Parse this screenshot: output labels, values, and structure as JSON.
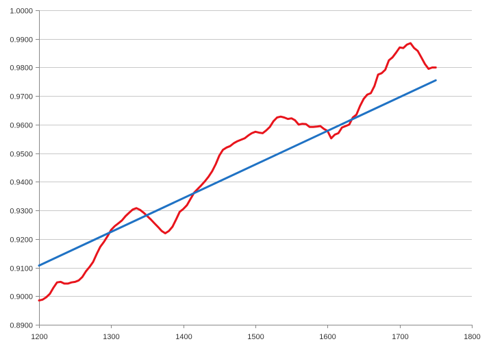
{
  "chart_data": {
    "type": "line",
    "title": "",
    "xlabel": "",
    "ylabel": "",
    "xlim": [
      1200,
      1800
    ],
    "ylim": [
      0.89,
      1.0
    ],
    "x_ticks": [
      1200,
      1300,
      1400,
      1500,
      1600,
      1700,
      1800
    ],
    "y_ticks": [
      0.89,
      0.9,
      0.91,
      0.92,
      0.93,
      0.94,
      0.95,
      0.96,
      0.97,
      0.98,
      0.99,
      1.0
    ],
    "x_tick_labels": [
      "1200",
      "1300",
      "1400",
      "1500",
      "1600",
      "1700",
      "1800"
    ],
    "y_tick_labels": [
      "0.8900",
      "0.9000",
      "0.9100",
      "0.9200",
      "0.9300",
      "0.9400",
      "0.9500",
      "0.9600",
      "0.9700",
      "0.9800",
      "0.9900",
      "1.0000"
    ],
    "grid": true,
    "legend": "none",
    "series": [
      {
        "color": "#e8141c",
        "points": [
          [
            1200,
            0.8985
          ],
          [
            1205,
            0.8988
          ],
          [
            1210,
            0.8996
          ],
          [
            1215,
            0.9008
          ],
          [
            1220,
            0.903
          ],
          [
            1225,
            0.9048
          ],
          [
            1230,
            0.905
          ],
          [
            1235,
            0.9044
          ],
          [
            1240,
            0.9044
          ],
          [
            1245,
            0.9048
          ],
          [
            1250,
            0.905
          ],
          [
            1255,
            0.9055
          ],
          [
            1260,
            0.9067
          ],
          [
            1265,
            0.9087
          ],
          [
            1270,
            0.9102
          ],
          [
            1275,
            0.912
          ],
          [
            1280,
            0.9148
          ],
          [
            1285,
            0.9173
          ],
          [
            1290,
            0.919
          ],
          [
            1295,
            0.921
          ],
          [
            1300,
            0.9232
          ],
          [
            1305,
            0.9245
          ],
          [
            1310,
            0.9255
          ],
          [
            1315,
            0.9265
          ],
          [
            1320,
            0.928
          ],
          [
            1325,
            0.9292
          ],
          [
            1330,
            0.9303
          ],
          [
            1335,
            0.9308
          ],
          [
            1340,
            0.9302
          ],
          [
            1345,
            0.9292
          ],
          [
            1350,
            0.928
          ],
          [
            1355,
            0.9268
          ],
          [
            1360,
            0.9255
          ],
          [
            1365,
            0.9242
          ],
          [
            1370,
            0.9228
          ],
          [
            1375,
            0.922
          ],
          [
            1380,
            0.9228
          ],
          [
            1385,
            0.9243
          ],
          [
            1390,
            0.9268
          ],
          [
            1395,
            0.9295
          ],
          [
            1400,
            0.9305
          ],
          [
            1405,
            0.9318
          ],
          [
            1410,
            0.934
          ],
          [
            1415,
            0.9362
          ],
          [
            1420,
            0.9375
          ],
          [
            1425,
            0.9388
          ],
          [
            1430,
            0.9402
          ],
          [
            1435,
            0.9418
          ],
          [
            1440,
            0.9437
          ],
          [
            1445,
            0.9462
          ],
          [
            1450,
            0.9492
          ],
          [
            1455,
            0.9512
          ],
          [
            1460,
            0.952
          ],
          [
            1465,
            0.9525
          ],
          [
            1470,
            0.9535
          ],
          [
            1475,
            0.9542
          ],
          [
            1480,
            0.9547
          ],
          [
            1485,
            0.9552
          ],
          [
            1490,
            0.9562
          ],
          [
            1495,
            0.957
          ],
          [
            1500,
            0.9575
          ],
          [
            1505,
            0.9572
          ],
          [
            1510,
            0.957
          ],
          [
            1515,
            0.958
          ],
          [
            1520,
            0.9592
          ],
          [
            1525,
            0.9612
          ],
          [
            1530,
            0.9625
          ],
          [
            1535,
            0.9628
          ],
          [
            1540,
            0.9625
          ],
          [
            1545,
            0.962
          ],
          [
            1550,
            0.9622
          ],
          [
            1555,
            0.9615
          ],
          [
            1560,
            0.96
          ],
          [
            1565,
            0.9603
          ],
          [
            1570,
            0.9602
          ],
          [
            1575,
            0.9592
          ],
          [
            1580,
            0.9592
          ],
          [
            1585,
            0.9593
          ],
          [
            1590,
            0.9595
          ],
          [
            1595,
            0.9585
          ],
          [
            1600,
            0.9578
          ],
          [
            1605,
            0.9552
          ],
          [
            1610,
            0.9565
          ],
          [
            1615,
            0.957
          ],
          [
            1620,
            0.959
          ],
          [
            1625,
            0.9595
          ],
          [
            1630,
            0.96
          ],
          [
            1635,
            0.9625
          ],
          [
            1640,
            0.9635
          ],
          [
            1645,
            0.9665
          ],
          [
            1650,
            0.969
          ],
          [
            1655,
            0.9705
          ],
          [
            1660,
            0.971
          ],
          [
            1665,
            0.9735
          ],
          [
            1670,
            0.9775
          ],
          [
            1675,
            0.978
          ],
          [
            1680,
            0.9792
          ],
          [
            1685,
            0.9825
          ],
          [
            1690,
            0.9835
          ],
          [
            1695,
            0.9852
          ],
          [
            1700,
            0.987
          ],
          [
            1705,
            0.9868
          ],
          [
            1710,
            0.988
          ],
          [
            1715,
            0.9885
          ],
          [
            1720,
            0.9868
          ],
          [
            1725,
            0.9858
          ],
          [
            1730,
            0.9835
          ],
          [
            1735,
            0.9812
          ],
          [
            1740,
            0.9795
          ],
          [
            1745,
            0.98
          ],
          [
            1750,
            0.98
          ]
        ]
      },
      {
        "color": "#1f72c4",
        "points": [
          [
            1200,
            0.9107
          ],
          [
            1750,
            0.9755
          ]
        ]
      }
    ]
  }
}
